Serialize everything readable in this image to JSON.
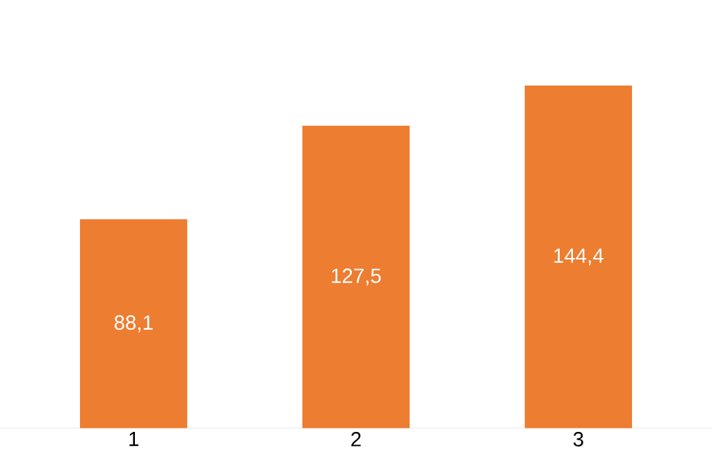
{
  "chart_data": {
    "type": "bar",
    "categories": [
      "1",
      "2",
      "3"
    ],
    "values": [
      88.1,
      127.5,
      144.4
    ],
    "value_labels": [
      "88,1",
      "127,5",
      "144,4"
    ],
    "color": "#ed7d31",
    "tick_labels": "x"
  }
}
